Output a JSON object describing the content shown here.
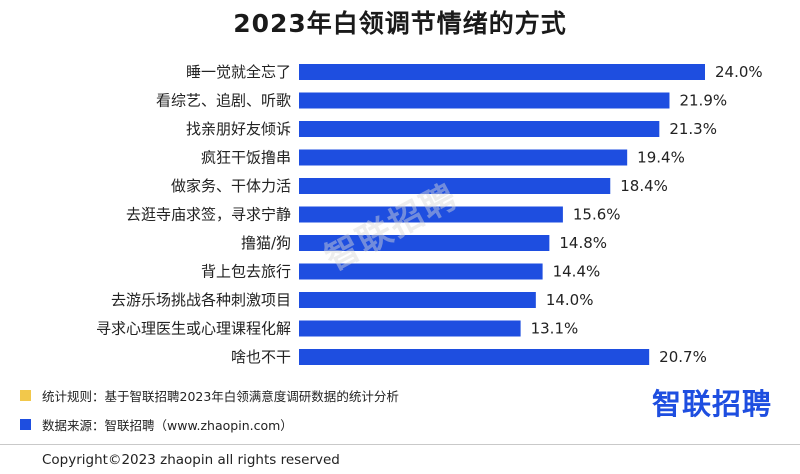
{
  "chart_data": {
    "type": "bar",
    "orientation": "horizontal",
    "title": "2023年白领调节情绪的方式",
    "categories": [
      "睡一觉就全忘了",
      "看综艺、追剧、听歌",
      "找亲朋好友倾诉",
      "疯狂干饭撸串",
      "做家务、干体力活",
      "去逛寺庙求签，寻求宁静",
      "撸猫/狗",
      "背上包去旅行",
      "去游乐场挑战各种刺激项目",
      "寻求心理医生或心理课程化解",
      "啥也不干"
    ],
    "values": [
      24.0,
      21.9,
      21.3,
      19.4,
      18.4,
      15.6,
      14.8,
      14.4,
      14.0,
      13.1,
      20.7
    ],
    "value_labels": [
      "24.0%",
      "21.9%",
      "21.3%",
      "19.4%",
      "18.4%",
      "15.6%",
      "14.8%",
      "14.4%",
      "14.0%",
      "13.1%",
      "20.7%"
    ],
    "xlim": [
      0,
      24.0
    ],
    "grid": false,
    "bar_color": "#1e4ee0"
  },
  "watermark": "智联招聘",
  "notes": [
    {
      "text": "统计规则：基于智联招聘2023年白领满意度调研数据的统计分析",
      "color": "#f2c84b"
    },
    {
      "text": "数据来源：智联招聘（www.zhaopin.com）",
      "color": "#1e4ee0"
    }
  ],
  "brand": "智联招聘",
  "copyright": "Copyright©2023 zhaopin all rights reserved"
}
